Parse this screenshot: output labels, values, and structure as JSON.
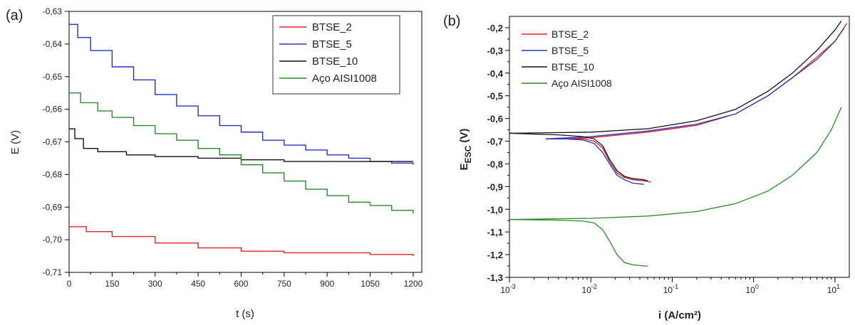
{
  "colors": {
    "BTSE_2": "#e0212a",
    "BTSE_5": "#2730c9",
    "BTSE_10": "#111111",
    "Aco": "#2a8a2a"
  },
  "chart_data": [
    {
      "panel_label": "(a)",
      "type": "line",
      "xlabel": "t (s)",
      "ylabel": "E (V)",
      "xlim": [
        0,
        1230
      ],
      "ylim": [
        -0.71,
        -0.63
      ],
      "xticks": [
        0,
        150,
        300,
        450,
        600,
        750,
        900,
        1050,
        1200
      ],
      "xtick_labels": [
        "0",
        "150",
        "300",
        "450",
        "600",
        "750",
        "900",
        "1050",
        "1200"
      ],
      "yticks": [
        -0.63,
        -0.64,
        -0.65,
        -0.66,
        -0.67,
        -0.68,
        -0.69,
        -0.7,
        -0.71
      ],
      "ytick_labels": [
        "-0,63",
        "-0,64",
        "-0,65",
        "-0,66",
        "-0,67",
        "-0,68",
        "-0,69",
        "-0,70",
        "-0,71"
      ],
      "legend_position": "top-right",
      "series": [
        {
          "name": "BTSE_2",
          "color_key": "BTSE_2",
          "points": [
            [
              0,
              -0.696
            ],
            [
              60,
              -0.6975
            ],
            [
              150,
              -0.699
            ],
            [
              300,
              -0.701
            ],
            [
              450,
              -0.7025
            ],
            [
              600,
              -0.7035
            ],
            [
              750,
              -0.704
            ],
            [
              900,
              -0.704
            ],
            [
              1050,
              -0.7045
            ],
            [
              1200,
              -0.705
            ]
          ]
        },
        {
          "name": "BTSE_5",
          "color_key": "BTSE_5",
          "points": [
            [
              0,
              -0.634
            ],
            [
              30,
              -0.638
            ],
            [
              75,
              -0.642
            ],
            [
              150,
              -0.647
            ],
            [
              225,
              -0.651
            ],
            [
              300,
              -0.6555
            ],
            [
              375,
              -0.659
            ],
            [
              450,
              -0.662
            ],
            [
              525,
              -0.665
            ],
            [
              600,
              -0.667
            ],
            [
              675,
              -0.6695
            ],
            [
              750,
              -0.671
            ],
            [
              825,
              -0.6725
            ],
            [
              900,
              -0.674
            ],
            [
              975,
              -0.675
            ],
            [
              1050,
              -0.676
            ],
            [
              1125,
              -0.6765
            ],
            [
              1200,
              -0.677
            ]
          ]
        },
        {
          "name": "BTSE_10",
          "color_key": "BTSE_10",
          "points": [
            [
              0,
              -0.666
            ],
            [
              20,
              -0.669
            ],
            [
              50,
              -0.672
            ],
            [
              100,
              -0.673
            ],
            [
              200,
              -0.674
            ],
            [
              300,
              -0.6745
            ],
            [
              450,
              -0.675
            ],
            [
              600,
              -0.6755
            ],
            [
              750,
              -0.676
            ],
            [
              900,
              -0.676
            ],
            [
              1050,
              -0.676
            ],
            [
              1200,
              -0.676
            ]
          ]
        },
        {
          "name": "Aço AISI1008",
          "color_key": "Aco",
          "points": [
            [
              0,
              -0.655
            ],
            [
              40,
              -0.658
            ],
            [
              100,
              -0.6605
            ],
            [
              150,
              -0.6625
            ],
            [
              225,
              -0.665
            ],
            [
              300,
              -0.6675
            ],
            [
              375,
              -0.6695
            ],
            [
              450,
              -0.672
            ],
            [
              525,
              -0.674
            ],
            [
              600,
              -0.677
            ],
            [
              675,
              -0.6795
            ],
            [
              750,
              -0.682
            ],
            [
              825,
              -0.6845
            ],
            [
              900,
              -0.6865
            ],
            [
              975,
              -0.6885
            ],
            [
              1050,
              -0.6895
            ],
            [
              1125,
              -0.691
            ],
            [
              1200,
              -0.692
            ]
          ]
        }
      ]
    },
    {
      "panel_label": "(b)",
      "type": "line",
      "x_scale": "log",
      "xlabel": "i (A/cm²)",
      "ylabel_main": "E",
      "ylabel_sub": "ESC",
      "ylabel_unit": " (V)",
      "xlim": [
        0.001,
        15
      ],
      "ylim": [
        -1.3,
        -0.15
      ],
      "xtick_decades": [
        -3,
        -2,
        -1,
        0,
        1
      ],
      "xtick_base": "10",
      "yticks": [
        -0.2,
        -0.3,
        -0.4,
        -0.5,
        -0.6,
        -0.7,
        -0.8,
        -0.9,
        -1.0,
        -1.1,
        -1.2,
        -1.3
      ],
      "ytick_labels": [
        "-0,2",
        "-0,3",
        "-0,4",
        "-0,5",
        "-0,6",
        "-0,7",
        "-0,8",
        "-0,9",
        "-1,0",
        "-1,1",
        "-1,2",
        "-1,3"
      ],
      "legend_position": "top-left",
      "series": [
        {
          "name": "BTSE_2",
          "color_key": "BTSE_2",
          "points": [
            [
              0.0045,
              -0.69
            ],
            [
              0.006,
              -0.69
            ],
            [
              0.008,
              -0.69
            ],
            [
              0.011,
              -0.7
            ],
            [
              0.014,
              -0.73
            ],
            [
              0.017,
              -0.79
            ],
            [
              0.021,
              -0.84
            ],
            [
              0.026,
              -0.86
            ],
            [
              0.033,
              -0.87
            ],
            [
              0.045,
              -0.875
            ],
            [
              0.055,
              -0.88
            ]
          ],
          "anodic": [
            [
              0.0045,
              -0.69
            ],
            [
              0.01,
              -0.685
            ],
            [
              0.05,
              -0.66
            ],
            [
              0.2,
              -0.63
            ],
            [
              0.6,
              -0.58
            ],
            [
              1.5,
              -0.5
            ],
            [
              3,
              -0.42
            ],
            [
              6,
              -0.33
            ],
            [
              10,
              -0.26
            ],
            [
              14,
              -0.18
            ]
          ]
        },
        {
          "name": "BTSE_5",
          "color_key": "BTSE_5",
          "points": [
            [
              0.0028,
              -0.69
            ],
            [
              0.005,
              -0.69
            ],
            [
              0.008,
              -0.695
            ],
            [
              0.011,
              -0.71
            ],
            [
              0.014,
              -0.75
            ],
            [
              0.017,
              -0.8
            ],
            [
              0.021,
              -0.85
            ],
            [
              0.026,
              -0.87
            ],
            [
              0.033,
              -0.885
            ],
            [
              0.045,
              -0.89
            ]
          ],
          "anodic": [
            [
              0.0028,
              -0.69
            ],
            [
              0.01,
              -0.68
            ],
            [
              0.05,
              -0.655
            ],
            [
              0.2,
              -0.625
            ],
            [
              0.6,
              -0.58
            ],
            [
              1.5,
              -0.5
            ],
            [
              3,
              -0.42
            ],
            [
              6,
              -0.34
            ],
            [
              10,
              -0.26
            ],
            [
              13,
              -0.2
            ]
          ]
        },
        {
          "name": "BTSE_10",
          "color_key": "BTSE_10",
          "points": [
            [
              0.001,
              -0.665
            ],
            [
              0.004,
              -0.672
            ],
            [
              0.008,
              -0.68
            ],
            [
              0.011,
              -0.69
            ],
            [
              0.014,
              -0.72
            ],
            [
              0.017,
              -0.78
            ],
            [
              0.021,
              -0.83
            ],
            [
              0.026,
              -0.855
            ],
            [
              0.033,
              -0.865
            ],
            [
              0.045,
              -0.87
            ],
            [
              0.05,
              -0.875
            ]
          ],
          "anodic": [
            [
              0.001,
              -0.665
            ],
            [
              0.01,
              -0.66
            ],
            [
              0.05,
              -0.645
            ],
            [
              0.2,
              -0.61
            ],
            [
              0.6,
              -0.56
            ],
            [
              1.5,
              -0.48
            ],
            [
              3,
              -0.4
            ],
            [
              6,
              -0.3
            ],
            [
              10,
              -0.21
            ],
            [
              12,
              -0.17
            ]
          ]
        },
        {
          "name": "Aço AISI1008",
          "color_key": "Aco",
          "points": [
            [
              0.001,
              -1.045
            ],
            [
              0.004,
              -1.048
            ],
            [
              0.008,
              -1.052
            ],
            [
              0.011,
              -1.06
            ],
            [
              0.014,
              -1.09
            ],
            [
              0.017,
              -1.14
            ],
            [
              0.021,
              -1.2
            ],
            [
              0.026,
              -1.235
            ],
            [
              0.033,
              -1.245
            ],
            [
              0.045,
              -1.25
            ],
            [
              0.05,
              -1.25
            ]
          ],
          "anodic": [
            [
              0.001,
              -1.045
            ],
            [
              0.01,
              -1.04
            ],
            [
              0.05,
              -1.03
            ],
            [
              0.2,
              -1.01
            ],
            [
              0.6,
              -0.975
            ],
            [
              1.5,
              -0.92
            ],
            [
              3,
              -0.85
            ],
            [
              6,
              -0.75
            ],
            [
              9,
              -0.65
            ],
            [
              12,
              -0.55
            ]
          ]
        }
      ]
    }
  ]
}
